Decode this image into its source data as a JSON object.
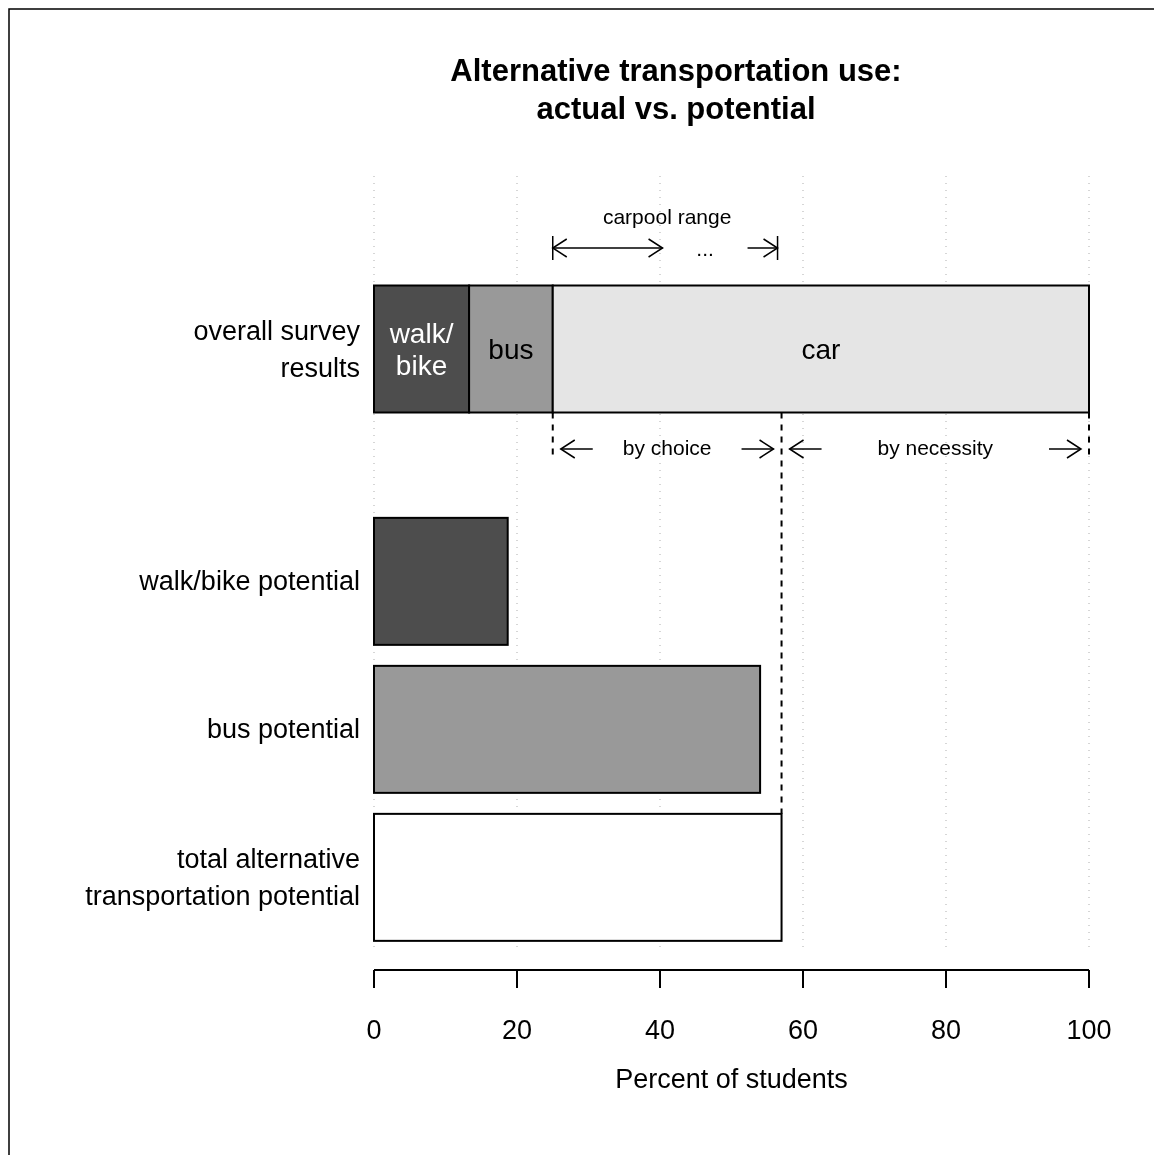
{
  "chart_data": {
    "type": "bar",
    "orientation": "horizontal",
    "stacked": true,
    "title": "Alternative transportation use:\nactual vs. potential",
    "xlabel": "Percent of students",
    "categories": [
      "overall survey results",
      "walk/bike potential",
      "bus potential",
      "total alternative transportation potential"
    ],
    "series": [
      {
        "name": "walk/bike",
        "color": "#4d4d4d",
        "values": [
          13.3,
          18.7,
          null,
          null
        ]
      },
      {
        "name": "bus",
        "color": "#999999",
        "values": [
          11.7,
          null,
          54,
          null
        ]
      },
      {
        "name": "car",
        "color": "#e5e5e5",
        "values": [
          75,
          null,
          null,
          null
        ]
      },
      {
        "color": "#ffffff",
        "values": [
          null,
          null,
          null,
          57
        ]
      }
    ],
    "xlim": [
      0,
      100
    ],
    "xticks": [
      0,
      20,
      40,
      60,
      80,
      100
    ],
    "grid": "x",
    "annotations": [
      "carpool range",
      "...",
      "by choice",
      "by necessity"
    ]
  }
}
